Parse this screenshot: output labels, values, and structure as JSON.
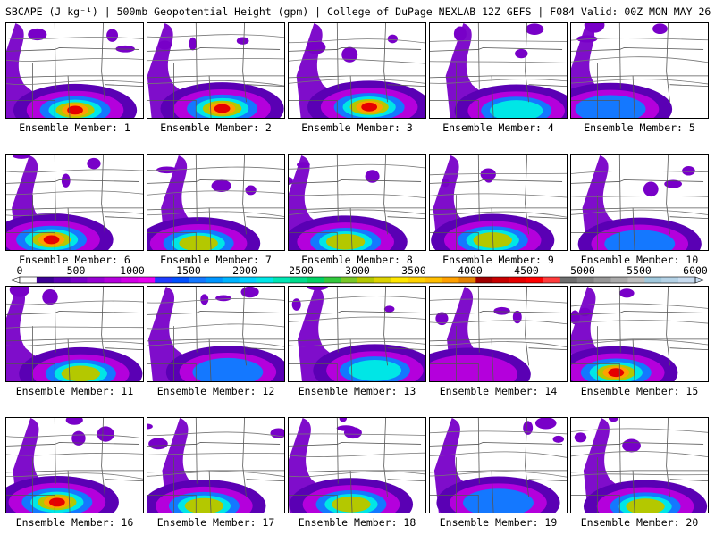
{
  "title": "SBCAPE (J kg⁻¹) | 500mb Geopotential Height (gpm) | College of DuPage NEXLAB 12Z GEFS | F084 Valid: 00Z MON MAY 26 2025",
  "panel_label_prefix": "Ensemble Member:",
  "members": [
    {
      "id": "1",
      "max_cape": 4600
    },
    {
      "id": "2",
      "max_cape": 4500
    },
    {
      "id": "3",
      "max_cape": 4600
    },
    {
      "id": "4",
      "max_cape": 2500
    },
    {
      "id": "5",
      "max_cape": 2000
    },
    {
      "id": "6",
      "max_cape": 4600
    },
    {
      "id": "7",
      "max_cape": 3200
    },
    {
      "id": "8",
      "max_cape": 3500
    },
    {
      "id": "9",
      "max_cape": 3500
    },
    {
      "id": "10",
      "max_cape": 1800
    },
    {
      "id": "11",
      "max_cape": 3000
    },
    {
      "id": "12",
      "max_cape": 2000
    },
    {
      "id": "13",
      "max_cape": 2200
    },
    {
      "id": "14",
      "max_cape": 1000
    },
    {
      "id": "15",
      "max_cape": 4600
    },
    {
      "id": "16",
      "max_cape": 4600
    },
    {
      "id": "17",
      "max_cape": 3500
    },
    {
      "id": "18",
      "max_cape": 3500
    },
    {
      "id": "19",
      "max_cape": 1600
    },
    {
      "id": "20",
      "max_cape": 3600
    }
  ],
  "colorbar": {
    "ticks": [
      "0",
      "500",
      "1000",
      "1500",
      "2000",
      "2500",
      "3000",
      "3500",
      "4000",
      "4500",
      "5000",
      "5500",
      "6000"
    ],
    "colors": [
      "#ffffff",
      "#3c0096",
      "#5a00b4",
      "#7800c8",
      "#9600d2",
      "#b400dc",
      "#d200e6",
      "#e600f0",
      "#1e3cff",
      "#0050ff",
      "#1478ff",
      "#0096ff",
      "#00b4ff",
      "#00d2ff",
      "#00e6e6",
      "#00e6b4",
      "#00dc8c",
      "#00d264",
      "#32c83c",
      "#78c828",
      "#b4c800",
      "#dcd200",
      "#ffe600",
      "#ffd200",
      "#ffbe00",
      "#ffa000",
      "#e68200",
      "#a00000",
      "#c80000",
      "#e60000",
      "#ff0000",
      "#ff3c3c",
      "#6e6e6e",
      "#828282",
      "#969696",
      "#aaaaaa",
      "#bebebe",
      "#a0c8dc",
      "#b4d2e6",
      "#c8dcf0"
    ]
  }
}
